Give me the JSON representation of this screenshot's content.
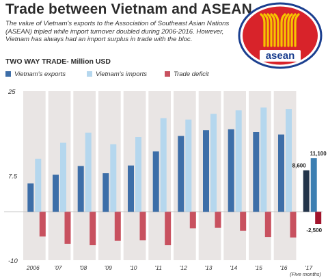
{
  "header": {
    "title": "Trade between Vietnam and ASEAN",
    "subtitle": "The value of Vietnam's exports to the Association of Southeast Asian Nations (ASEAN) tripled while import turnover doubled during 2006-2016. However, Vietnam has always had an import surplus in trade with the bloc.",
    "logo_text": "asean"
  },
  "colors": {
    "exports": "#3d6ea8",
    "imports": "#b5d7ee",
    "deficit": "#c8515f",
    "background_band": "#e9e5e4",
    "exports_2017": "#23344a",
    "imports_2017": "#3d7fb2",
    "deficit_2017": "#a2142c",
    "logo_red": "#d8232a",
    "logo_blue": "#1b3f8f",
    "logo_yellow": "#f6c500"
  },
  "chart_data": {
    "type": "bar",
    "title": "TWO WAY TRADE- Million USD",
    "categories": [
      "2006",
      "'07",
      "'08",
      "'09",
      "'10",
      "'11",
      "'12",
      "'13",
      "'14",
      "'15",
      "'16",
      "'17"
    ],
    "category_note": "(Five months)",
    "series": [
      {
        "name": "Vietnam's exports",
        "values": [
          5900,
          7700,
          9500,
          8000,
          9600,
          12500,
          15700,
          16900,
          17100,
          16500,
          16000,
          8600
        ]
      },
      {
        "name": "Vietnam's imports",
        "values": [
          11000,
          14300,
          16400,
          14000,
          15500,
          19400,
          19100,
          20300,
          21000,
          21600,
          21300,
          11100
        ]
      },
      {
        "name": "Trade deficit",
        "values": [
          -5100,
          -6600,
          -6900,
          -6000,
          -5900,
          -6900,
          -3400,
          -3300,
          -3900,
          -5200,
          -5300,
          -2500
        ]
      }
    ],
    "data_labels": [
      {
        "category": "'17",
        "series": "Vietnam's exports",
        "text": "8,600"
      },
      {
        "category": "'17",
        "series": "Vietnam's imports",
        "text": "11,100"
      },
      {
        "category": "'17",
        "series": "Trade deficit",
        "text": "-2,500"
      }
    ],
    "y_ticks": [
      {
        "value": 25000,
        "label": "25"
      },
      {
        "value": 7500,
        "label": "7.5"
      },
      {
        "value": -10000,
        "label": "-10"
      }
    ],
    "ylim": [
      -10000,
      25000
    ],
    "legend_position": "top-left",
    "grid": false
  }
}
